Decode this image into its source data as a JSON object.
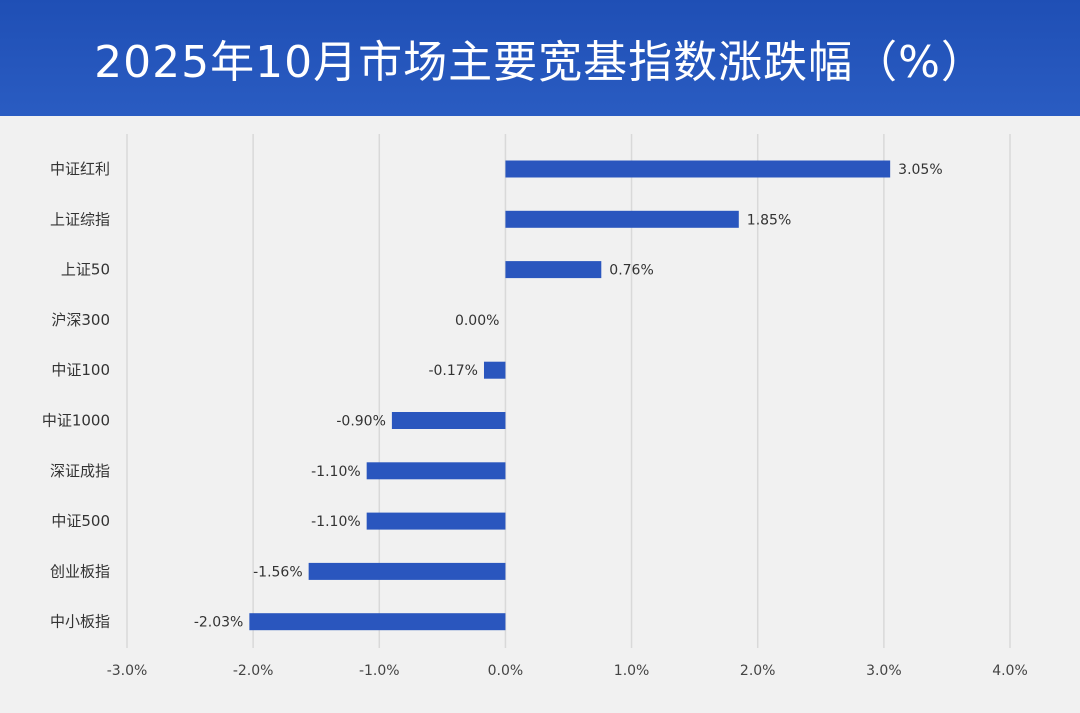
{
  "title": "2025年10月市场主要宽基指数涨跌幅（%）",
  "colors": {
    "header_bg": "#2a5cc2",
    "bar": "#2a56be",
    "background": "#f1f1f1"
  },
  "chart_data": {
    "type": "bar",
    "orientation": "horizontal",
    "title": "2025年10月市场主要宽基指数涨跌幅（%）",
    "categories": [
      "中证红利",
      "上证综指",
      "上证50",
      "沪深300",
      "中证100",
      "中证1000",
      "深证成指",
      "中证500",
      "创业板指",
      "中小板指"
    ],
    "values": [
      3.05,
      1.85,
      0.76,
      0.0,
      -0.17,
      -0.9,
      -1.1,
      -1.1,
      -1.56,
      -2.03
    ],
    "value_labels": [
      "3.05%",
      "1.85%",
      "0.76%",
      "0.00%",
      "-0.17%",
      "-0.90%",
      "-1.10%",
      "-1.10%",
      "-1.56%",
      "-2.03%"
    ],
    "xlim": [
      -3.0,
      4.0
    ],
    "x_ticks": [
      -3.0,
      -2.0,
      -1.0,
      0.0,
      1.0,
      2.0,
      3.0,
      4.0
    ],
    "x_tick_labels": [
      "-3.0%",
      "-2.0%",
      "-1.0%",
      "0.0%",
      "1.0%",
      "2.0%",
      "3.0%",
      "4.0%"
    ],
    "xlabel": "",
    "ylabel": "",
    "grid": true,
    "legend": "none"
  }
}
